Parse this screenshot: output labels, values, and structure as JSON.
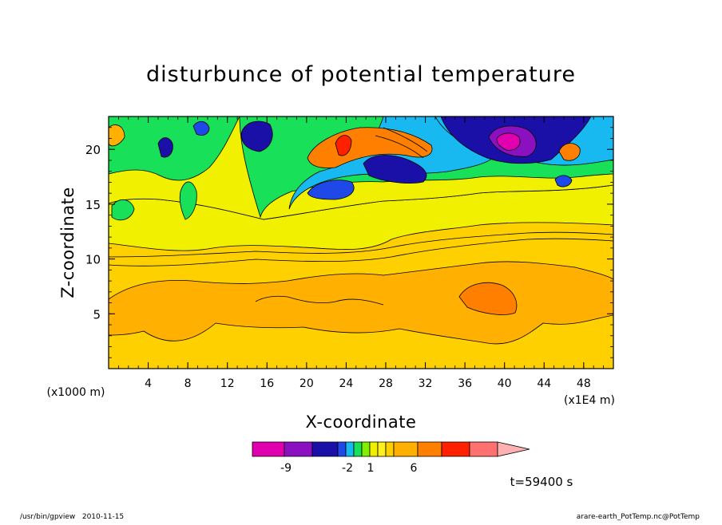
{
  "chart_data": {
    "type": "heatmap",
    "title": "disturbunce of potential temperature",
    "xlabel": "X-coordinate",
    "ylabel": "Z-coordinate",
    "x_unit": "(x1E4 m)",
    "y_unit": "(x1000 m)",
    "xlim": [
      0,
      51
    ],
    "ylim": [
      0,
      23
    ],
    "x_ticks": [
      "4",
      "8",
      "12",
      "16",
      "20",
      "24",
      "28",
      "32",
      "36",
      "40",
      "44",
      "48"
    ],
    "y_ticks": [
      "5",
      "10",
      "15",
      "20"
    ],
    "colorbar": {
      "colors": [
        "#e000b0",
        "#8a10c0",
        "#1a10a8",
        "#1e48e8",
        "#18b8f0",
        "#18e058",
        "#80f000",
        "#f0f000",
        "#fff020",
        "#ffd000",
        "#ffb000",
        "#ff8000",
        "#ff2000",
        "#ff7070",
        "#ffb0b0"
      ],
      "tick_labels": [
        "-9",
        "-2",
        "1",
        "6"
      ]
    },
    "time_label": "t=59400 s",
    "footer_left": "/usr/bin/gpview   2010-11-15",
    "footer_right": "arare-earth_PotTemp.nc@PotTemp"
  }
}
